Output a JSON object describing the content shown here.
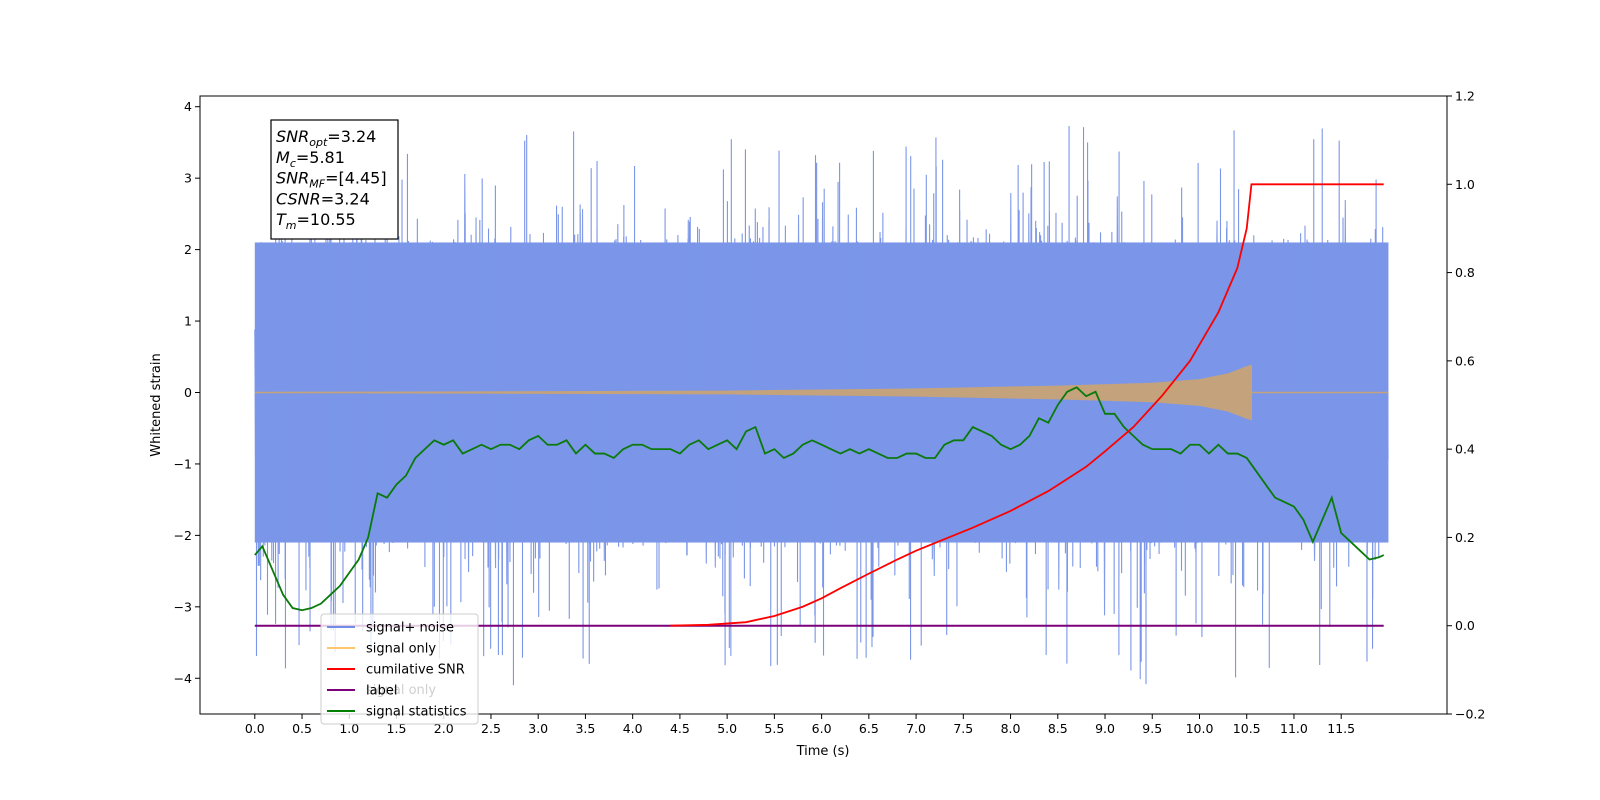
{
  "chart_data": {
    "type": "line",
    "xlabel": "Time (s)",
    "ylabel": "Whitened strain",
    "xlim": [
      -0.58,
      12.62
    ],
    "ylim": [
      -4.5,
      4.15
    ],
    "ylim_right": [
      -0.2,
      1.2
    ],
    "x_ticks": [
      "0.0",
      "0.5",
      "1.0",
      "1.5",
      "2.0",
      "2.5",
      "3.0",
      "3.5",
      "4.0",
      "4.5",
      "5.0",
      "5.5",
      "6.0",
      "6.5",
      "7.0",
      "7.5",
      "8.0",
      "8.5",
      "9.0",
      "9.5",
      "10.0",
      "10.5",
      "11.0",
      "11.5"
    ],
    "y_ticks_left": [
      "−4",
      "−3",
      "−2",
      "−1",
      "0",
      "1",
      "2",
      "3",
      "4"
    ],
    "y_ticks_right": [
      "−0.2",
      "0.0",
      "0.2",
      "0.4",
      "0.6",
      "0.8",
      "1.0",
      "1.2"
    ],
    "annotation": [
      {
        "base": "SNR",
        "sub": "opt",
        "value": "=3.24"
      },
      {
        "base": "M",
        "sub": "c",
        "value": "=5.81"
      },
      {
        "base": "SNR",
        "sub": "MF",
        "value": "=[4.45]"
      },
      {
        "base": "CSNR",
        "sub": "",
        "value": "=3.24"
      },
      {
        "base": "T",
        "sub": "m",
        "value": "=10.55"
      }
    ],
    "legend_ghost_text": "signal only",
    "legend": [
      {
        "label": "signal+ noise",
        "color": "#6f8de6"
      },
      {
        "label": "signal only",
        "color": "#ffc66b"
      },
      {
        "label": "cumilative SNR",
        "color": "#ff0000"
      },
      {
        "label": "label",
        "color": "#7b007b"
      },
      {
        "label": "signal statistics",
        "color": "#007f00"
      }
    ],
    "colors": {
      "noise": "#7b96e8",
      "signal": "#c4a27c",
      "snr": "#ff0000",
      "label": "#7b007b",
      "stats": "#0a7a0a"
    },
    "series": {
      "noise": {
        "x_range": [
          0,
          12.0
        ],
        "band_low": -2.1,
        "band_high": 2.1,
        "peak_max": 3.75,
        "peak_min": -4.1
      },
      "signal": {
        "x_range": [
          0,
          10.55
        ],
        "envelope": [
          [
            0,
            0.0
          ],
          [
            5.0,
            0.02
          ],
          [
            7.0,
            0.05
          ],
          [
            8.5,
            0.09
          ],
          [
            9.5,
            0.13
          ],
          [
            10.0,
            0.18
          ],
          [
            10.3,
            0.26
          ],
          [
            10.5,
            0.36
          ],
          [
            10.55,
            0.38
          ]
        ]
      },
      "label": {
        "x_range": [
          0,
          11.95
        ],
        "value_right": 0.0
      },
      "cumulative_snr": {
        "x": [
          4.4,
          4.8,
          5.2,
          5.5,
          5.8,
          6.0,
          6.2,
          6.5,
          6.8,
          7.0,
          7.3,
          7.6,
          8.0,
          8.4,
          8.8,
          9.0,
          9.3,
          9.6,
          9.9,
          10.2,
          10.4,
          10.5,
          10.55,
          11.95
        ],
        "y_right": [
          0.0,
          0.002,
          0.008,
          0.022,
          0.043,
          0.062,
          0.085,
          0.118,
          0.15,
          0.17,
          0.196,
          0.222,
          0.26,
          0.305,
          0.36,
          0.395,
          0.45,
          0.52,
          0.6,
          0.71,
          0.81,
          0.9,
          1.0,
          1.0
        ]
      },
      "signal_statistics": {
        "x": [
          0.0,
          0.08,
          0.2,
          0.3,
          0.4,
          0.5,
          0.6,
          0.7,
          0.8,
          0.9,
          1.0,
          1.1,
          1.2,
          1.3,
          1.4,
          1.5,
          1.6,
          1.7,
          1.8,
          1.9,
          2.0,
          2.1,
          2.2,
          2.3,
          2.4,
          2.5,
          2.6,
          2.7,
          2.8,
          2.9,
          3.0,
          3.1,
          3.2,
          3.3,
          3.4,
          3.5,
          3.6,
          3.7,
          3.8,
          3.9,
          4.0,
          4.1,
          4.2,
          4.3,
          4.4,
          4.5,
          4.6,
          4.7,
          4.8,
          4.9,
          5.0,
          5.1,
          5.2,
          5.3,
          5.4,
          5.5,
          5.6,
          5.7,
          5.8,
          5.9,
          6.0,
          6.1,
          6.2,
          6.3,
          6.4,
          6.5,
          6.6,
          6.7,
          6.8,
          6.9,
          7.0,
          7.1,
          7.2,
          7.3,
          7.4,
          7.5,
          7.6,
          7.7,
          7.8,
          7.9,
          8.0,
          8.1,
          8.2,
          8.3,
          8.4,
          8.5,
          8.6,
          8.7,
          8.8,
          8.9,
          9.0,
          9.1,
          9.2,
          9.3,
          9.4,
          9.5,
          9.6,
          9.7,
          9.8,
          9.9,
          10.0,
          10.1,
          10.2,
          10.3,
          10.4,
          10.5,
          10.6,
          10.7,
          10.8,
          10.9,
          11.0,
          11.1,
          11.2,
          11.3,
          11.4,
          11.5,
          11.6,
          11.7,
          11.8,
          11.9,
          11.95
        ],
        "y_right": [
          0.16,
          0.18,
          0.12,
          0.07,
          0.04,
          0.035,
          0.04,
          0.05,
          0.07,
          0.09,
          0.12,
          0.15,
          0.2,
          0.3,
          0.29,
          0.32,
          0.34,
          0.38,
          0.4,
          0.42,
          0.41,
          0.42,
          0.39,
          0.4,
          0.41,
          0.4,
          0.41,
          0.41,
          0.4,
          0.42,
          0.43,
          0.41,
          0.41,
          0.42,
          0.39,
          0.41,
          0.39,
          0.39,
          0.38,
          0.4,
          0.41,
          0.41,
          0.4,
          0.4,
          0.4,
          0.39,
          0.41,
          0.42,
          0.4,
          0.41,
          0.42,
          0.4,
          0.44,
          0.45,
          0.39,
          0.4,
          0.38,
          0.39,
          0.41,
          0.42,
          0.41,
          0.4,
          0.39,
          0.4,
          0.39,
          0.4,
          0.39,
          0.38,
          0.38,
          0.39,
          0.39,
          0.38,
          0.38,
          0.41,
          0.42,
          0.42,
          0.45,
          0.44,
          0.43,
          0.41,
          0.4,
          0.41,
          0.43,
          0.47,
          0.46,
          0.5,
          0.53,
          0.54,
          0.52,
          0.53,
          0.48,
          0.48,
          0.45,
          0.43,
          0.41,
          0.4,
          0.4,
          0.4,
          0.39,
          0.41,
          0.41,
          0.39,
          0.41,
          0.39,
          0.39,
          0.38,
          0.35,
          0.32,
          0.29,
          0.28,
          0.27,
          0.24,
          0.19,
          0.24,
          0.29,
          0.21,
          0.19,
          0.17,
          0.15,
          0.155,
          0.16
        ]
      }
    }
  }
}
